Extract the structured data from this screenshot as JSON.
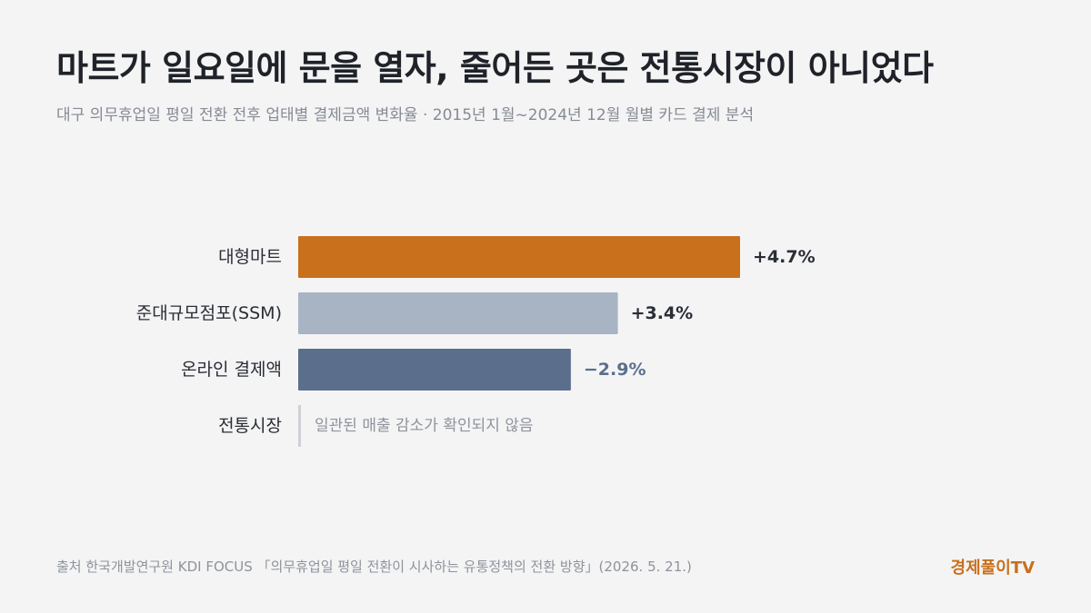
{
  "title": "마트가 일요일에 문을 열자, 줄어든 곳은 전통시장이 아니었다",
  "subtitle": "대구 의무휴업일 평일 전환 전후 업태별 결제금액 변화율 · 2015년 1월~2024년 12월 월별 카드 결제 분석",
  "source": "출처 한국개발연구원 KDI FOCUS 「의무휴업일 평일 전환이 시사하는 유통정책의 전환 방향」(2026. 5. 21.)",
  "brand": "경제풀이TV",
  "colors": {
    "background": "#f4f4f5",
    "large_mart": "#c8701c",
    "ssm": "#a8b3c3",
    "online": "#5b6f8c",
    "traditional_marker": "#cfd1d5",
    "label_dark": "#2a2e35",
    "label_online": "#5b6f8c",
    "note_text": "#8e939b"
  },
  "chart_data": {
    "type": "bar",
    "orientation": "horizontal",
    "unit": "%",
    "categories": [
      "대형마트",
      "준대규모점포(SSM)",
      "온라인 결제액",
      "전통시장"
    ],
    "values": [
      4.7,
      3.4,
      -2.9,
      null
    ],
    "value_labels": [
      "+4.7%",
      "+3.4%",
      "−2.9%",
      ""
    ],
    "notes": [
      "",
      "",
      "",
      "일관된 매출 감소가 확인되지 않음"
    ],
    "bar_colors": [
      "#c8701c",
      "#a8b3c3",
      "#5b6f8c",
      "#cfd1d5"
    ],
    "value_label_colors": [
      "#2a2e35",
      "#2a2e35",
      "#5b6f8c",
      "#8e939b"
    ]
  }
}
